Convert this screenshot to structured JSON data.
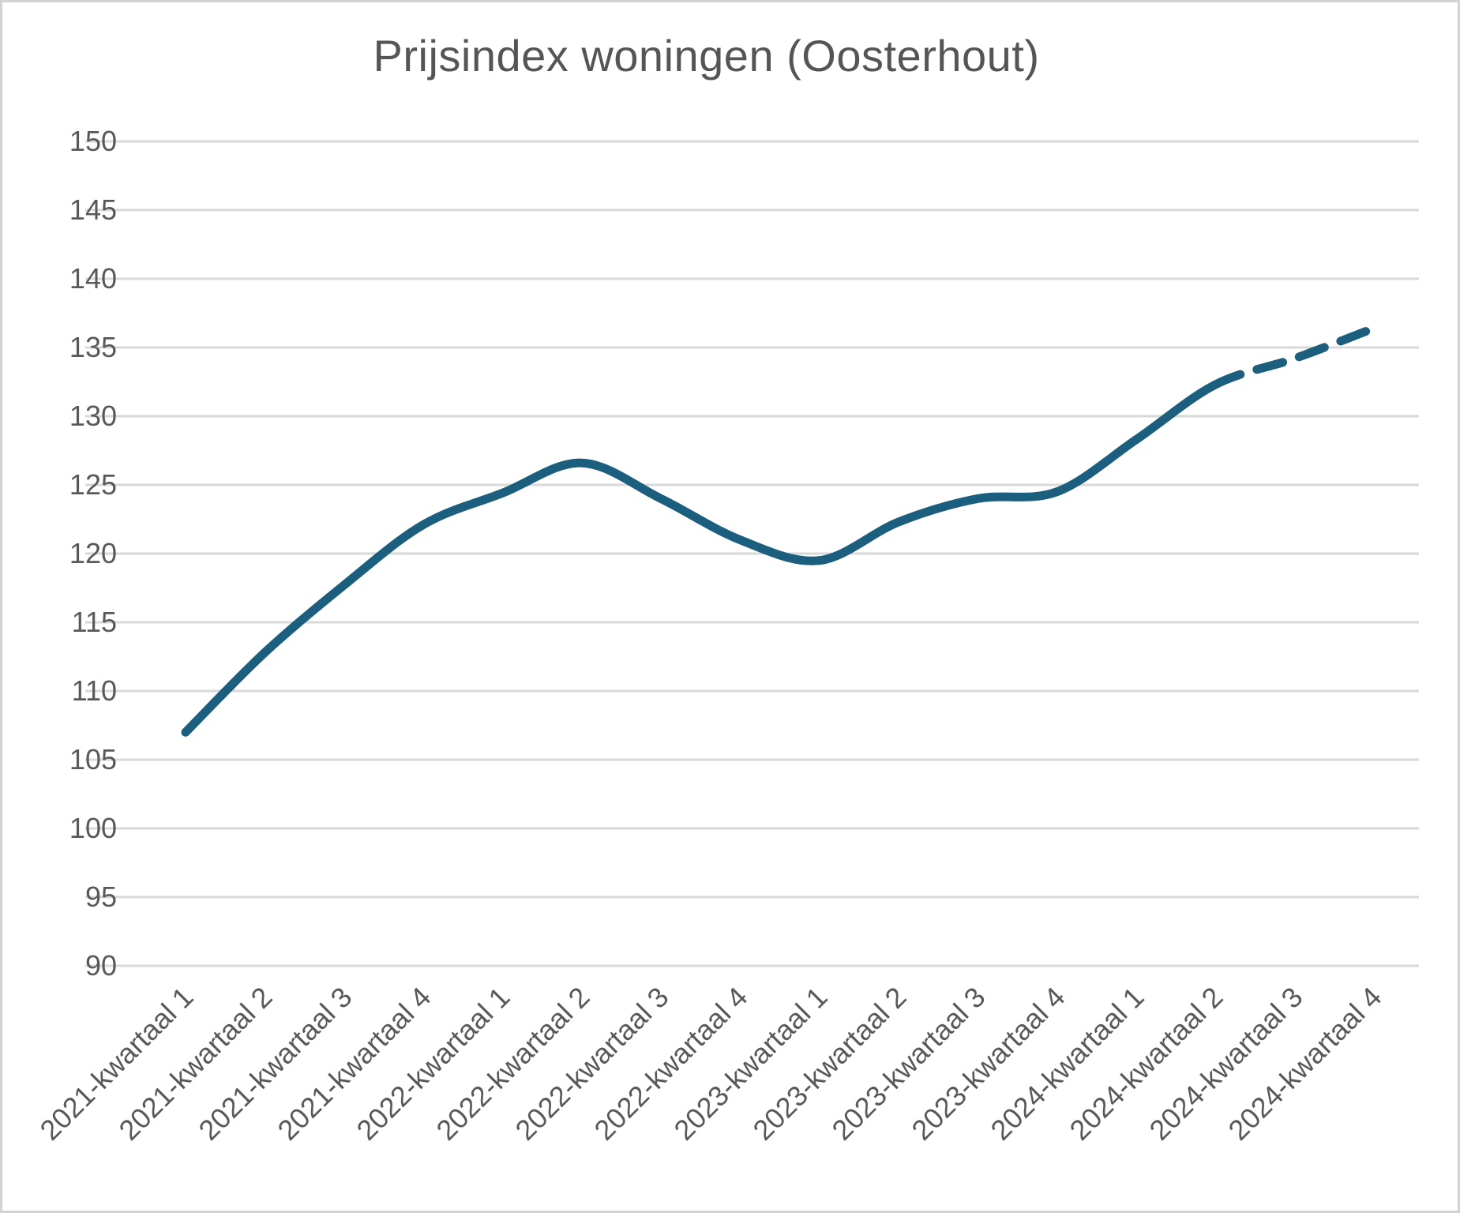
{
  "chart_data": {
    "type": "line",
    "title": "Prijsindex woningen (Oosterhout)",
    "categories": [
      "2021-kwartaal 1",
      "2021-kwartaal 2",
      "2021-kwartaal 3",
      "2021-kwartaal 4",
      "2022-kwartaal 1",
      "2022-kwartaal 2",
      "2022-kwartaal 3",
      "2022-kwartaal 4",
      "2023-kwartaal 1",
      "2023-kwartaal 2",
      "2023-kwartaal 3",
      "2023-kwartaal 4",
      "2024-kwartaal 1",
      "2024-kwartaal 2",
      "2024-kwartaal 3",
      "2024-kwartaal 4"
    ],
    "series": [
      {
        "name": "Prijsindex woningen",
        "values": [
          107.0,
          112.8,
          117.7,
          122.1,
          124.4,
          126.6,
          124.0,
          121.0,
          119.5,
          122.3,
          124.0,
          124.5,
          128.3,
          132.3,
          134.2,
          136.4
        ],
        "solid_through_index": 13,
        "forecast_style": "dashed"
      }
    ],
    "ylim": [
      90,
      150
    ],
    "yticks": [
      90,
      95,
      100,
      105,
      110,
      115,
      120,
      125,
      130,
      135,
      140,
      145,
      150
    ],
    "grid": true,
    "legend": "none",
    "smooth": true,
    "line_color": "#1B5E7D"
  },
  "styles": {
    "gridline_color": "#D9D9D9",
    "axis_text_color": "#595959",
    "title_color": "#555555",
    "background": "#FFFFFF",
    "border_color": "#D2D2D2"
  }
}
